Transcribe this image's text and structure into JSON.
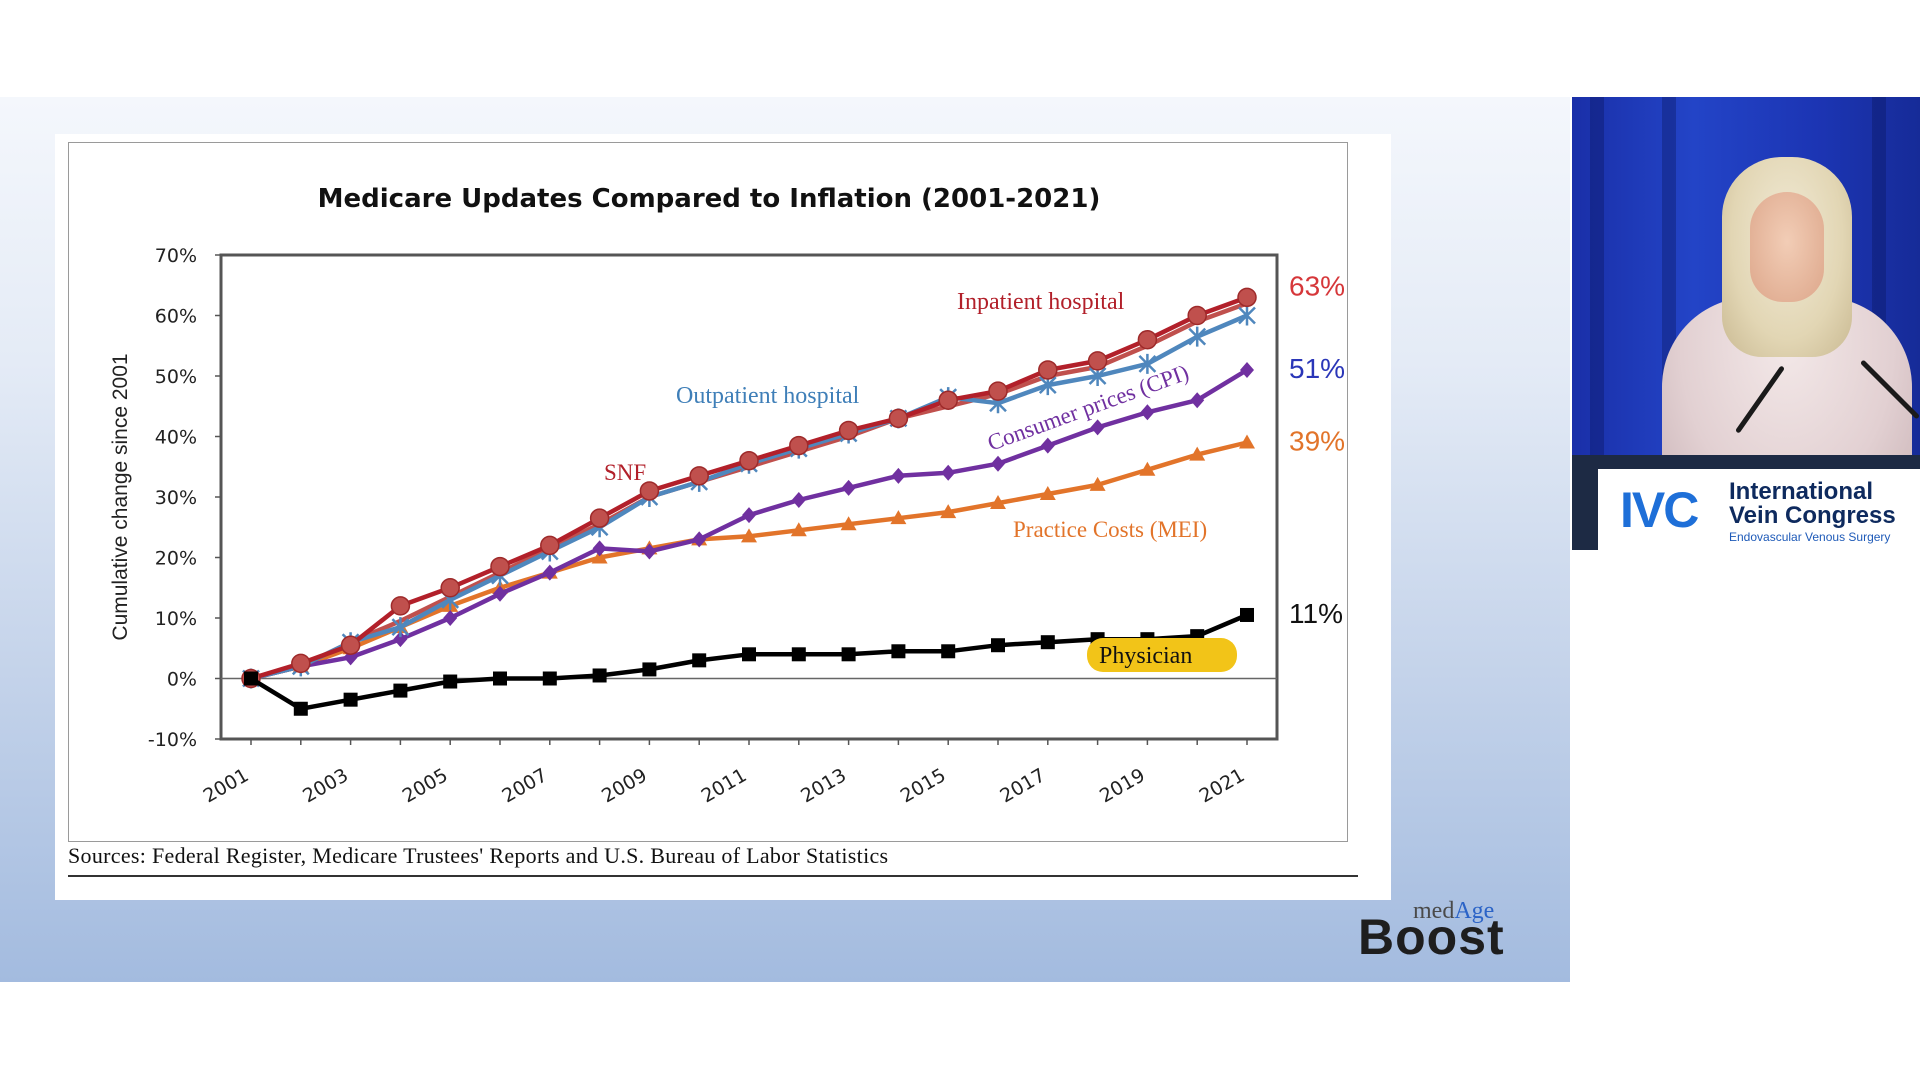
{
  "slide": {
    "sources": "Sources:  Federal Register, Medicare Trustees' Reports and U.S. Bureau of Labor Statistics"
  },
  "chart_data": {
    "type": "line",
    "title": "Medicare Updates Compared to Inflation (2001-2021)",
    "ylabel": "Cumulative change since 2001",
    "xlabel": "",
    "ylim": [
      -10,
      70
    ],
    "yticks": [
      "-10%",
      "0%",
      "10%",
      "20%",
      "30%",
      "40%",
      "50%",
      "60%",
      "70%"
    ],
    "xticks": [
      "2001",
      "2003",
      "2005",
      "2007",
      "2009",
      "2011",
      "2013",
      "2015",
      "2017",
      "2019",
      "2021"
    ],
    "x": [
      2001,
      2002,
      2003,
      2004,
      2005,
      2006,
      2007,
      2008,
      2009,
      2010,
      2011,
      2012,
      2013,
      2014,
      2015,
      2016,
      2017,
      2018,
      2019,
      2020,
      2021
    ],
    "grid": false,
    "series": [
      {
        "name": "Inpatient hospital",
        "color": "#b2202a",
        "marker": "circle",
        "end_label": "63%",
        "values": [
          0,
          2.5,
          5.5,
          12,
          15,
          18.5,
          22,
          26.5,
          31,
          33.5,
          36,
          38.5,
          41,
          43,
          46,
          47.5,
          51,
          52.5,
          56,
          60,
          63
        ]
      },
      {
        "name": "SNF",
        "color": "#c0504d",
        "marker": "none",
        "end_label": "",
        "values": [
          0,
          2,
          6,
          9.5,
          13.5,
          17.5,
          21.5,
          25.5,
          30,
          32.5,
          35,
          37.5,
          40,
          43,
          45,
          47,
          50,
          51.5,
          55,
          59,
          62
        ]
      },
      {
        "name": "Outpatient hospital",
        "color": "#4f87bd",
        "marker": "star",
        "end_label": "",
        "values": [
          0,
          2,
          6,
          8.5,
          13,
          17,
          21,
          25,
          30,
          32.5,
          35.5,
          38,
          40.5,
          43,
          46.5,
          45.5,
          48.5,
          50,
          52,
          56.5,
          60
        ]
      },
      {
        "name": "Consumer prices (CPI)",
        "color": "#7030a0",
        "marker": "diamond",
        "end_label": "51%",
        "end_label_color": "#2a36b8",
        "values": [
          0,
          2,
          3.5,
          6.5,
          10,
          14,
          17.5,
          21.5,
          21,
          23,
          27,
          29.5,
          31.5,
          33.5,
          34,
          35.5,
          38.5,
          41.5,
          44,
          46,
          51
        ]
      },
      {
        "name": "Practice Costs (MEI)",
        "color": "#e2742a",
        "marker": "triangle",
        "end_label": "39%",
        "values": [
          0,
          2,
          5,
          8.5,
          12,
          15,
          17.5,
          20,
          21.5,
          23,
          23.5,
          24.5,
          25.5,
          26.5,
          27.5,
          29,
          30.5,
          32,
          34.5,
          37,
          39
        ]
      },
      {
        "name": "Physician",
        "color": "#000000",
        "marker": "square",
        "end_label": "11%",
        "values": [
          0,
          -5,
          -3.5,
          -2,
          -0.5,
          0,
          0,
          0.5,
          1.5,
          3,
          4,
          4,
          4,
          4.5,
          4.5,
          5.5,
          6,
          6.5,
          6.5,
          7,
          10.5
        ]
      }
    ]
  },
  "video": {
    "logo_mark": "IVC",
    "logo_line1": "International",
    "logo_line2": "Vein Congress",
    "logo_line3": "Endovascular Venous Surgery"
  },
  "brand": {
    "med": "med",
    "age": "Age",
    "boost": "Boost"
  }
}
